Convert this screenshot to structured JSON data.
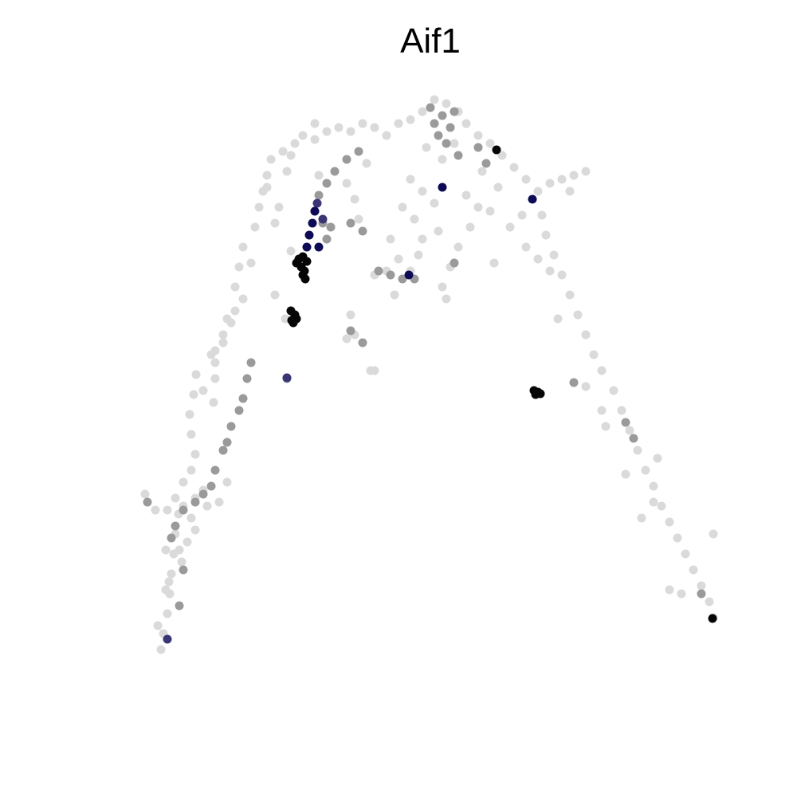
{
  "chart_data": {
    "type": "scatter",
    "title": "Aif1",
    "xlabel": "",
    "ylabel": "",
    "axes_visible": false,
    "grid": false,
    "legend": "none",
    "xlim": [
      0,
      100
    ],
    "ylim": [
      0,
      100
    ],
    "colors": {
      "low": "#dadada",
      "mid": "#9a9a9a",
      "high_navy": "#0d0b55",
      "high_black": "#050505",
      "purple": "#3a3575"
    },
    "series": [
      {
        "values": [
          [
            20.2,
            18.5
          ],
          [
            20.5,
            20.5
          ],
          [
            21.0,
            23.0
          ],
          [
            21.3,
            25.5
          ],
          [
            21.5,
            28.0
          ],
          [
            21.8,
            30.5
          ],
          [
            22.0,
            33.0
          ],
          [
            22.4,
            35.5
          ],
          [
            22.0,
            37.5
          ],
          [
            21.0,
            36.0
          ],
          [
            23.0,
            36.5
          ],
          [
            24.0,
            35.0
          ],
          [
            24.5,
            37.5
          ],
          [
            25.5,
            38.5
          ],
          [
            24.0,
            41.0
          ],
          [
            23.0,
            39.5
          ],
          [
            18.2,
            38.0
          ],
          [
            19.5,
            36.0
          ],
          [
            22.5,
            31.0
          ],
          [
            20.8,
            26.0
          ],
          [
            23.5,
            32.0
          ],
          [
            24.5,
            33.5
          ],
          [
            26.0,
            36.5
          ],
          [
            27.5,
            37.0
          ],
          [
            28.5,
            39.5
          ],
          [
            24.5,
            43.0
          ],
          [
            24.0,
            45.5
          ],
          [
            23.8,
            48.0
          ],
          [
            24.3,
            50.5
          ],
          [
            24.6,
            53.0
          ],
          [
            25.5,
            51.0
          ],
          [
            27.0,
            52.5
          ],
          [
            26.5,
            55.5
          ],
          [
            28.0,
            58.0
          ],
          [
            29.5,
            61.0
          ],
          [
            30.5,
            62.5
          ],
          [
            28.0,
            57.0
          ],
          [
            29.0,
            59.5
          ],
          [
            27.0,
            56.0
          ],
          [
            28.5,
            60.0
          ],
          [
            29.5,
            64.0
          ],
          [
            30.0,
            66.5
          ],
          [
            30.5,
            69.0
          ],
          [
            31.5,
            67.0
          ],
          [
            32.0,
            71.5
          ],
          [
            32.5,
            74.0
          ],
          [
            33.0,
            76.0
          ],
          [
            33.5,
            78.0
          ],
          [
            34.0,
            80.0
          ],
          [
            35.5,
            81.0
          ],
          [
            37.0,
            82.0
          ],
          [
            38.0,
            83.0
          ],
          [
            39.5,
            82.5
          ],
          [
            41.0,
            83.5
          ],
          [
            42.5,
            84.0
          ],
          [
            44.0,
            83.5
          ],
          [
            45.5,
            84.5
          ],
          [
            47.0,
            84.0
          ],
          [
            48.5,
            83.0
          ],
          [
            50.0,
            84.5
          ],
          [
            51.5,
            85.0
          ],
          [
            53.0,
            86.0
          ],
          [
            54.5,
            87.5
          ],
          [
            56.0,
            87.0
          ],
          [
            57.5,
            86.0
          ],
          [
            58.5,
            84.5
          ],
          [
            60.0,
            83.0
          ],
          [
            61.5,
            82.0
          ],
          [
            63.0,
            80.5
          ],
          [
            64.5,
            79.0
          ],
          [
            66.0,
            77.5
          ],
          [
            67.5,
            76.0
          ],
          [
            69.0,
            77.0
          ],
          [
            70.5,
            77.5
          ],
          [
            72.0,
            78.0
          ],
          [
            73.5,
            78.5
          ],
          [
            71.5,
            76.0
          ],
          [
            68.0,
            73.0
          ],
          [
            68.5,
            70.5
          ],
          [
            69.5,
            68.0
          ],
          [
            70.5,
            65.5
          ],
          [
            71.5,
            63.0
          ],
          [
            72.5,
            60.5
          ],
          [
            73.5,
            58.0
          ],
          [
            74.5,
            55.5
          ],
          [
            75.5,
            53.5
          ],
          [
            77.0,
            51.0
          ],
          [
            78.0,
            48.5
          ],
          [
            79.0,
            46.0
          ],
          [
            80.0,
            43.5
          ],
          [
            81.0,
            41.0
          ],
          [
            82.0,
            39.0
          ],
          [
            83.0,
            36.5
          ],
          [
            84.0,
            34.5
          ],
          [
            85.0,
            32.5
          ],
          [
            86.0,
            30.5
          ],
          [
            87.0,
            28.5
          ],
          [
            88.0,
            26.5
          ],
          [
            89.0,
            24.5
          ],
          [
            89.5,
            22.5
          ],
          [
            84.0,
            26.0
          ],
          [
            89.5,
            33.0
          ],
          [
            75.5,
            48.5
          ],
          [
            72.0,
            52.0
          ],
          [
            73.5,
            51.5
          ],
          [
            51.5,
            77.5
          ],
          [
            53.0,
            76.0
          ],
          [
            54.5,
            74.5
          ],
          [
            55.0,
            71.0
          ],
          [
            53.0,
            70.0
          ],
          [
            52.5,
            68.0
          ],
          [
            51.5,
            66.0
          ],
          [
            50.0,
            67.5
          ],
          [
            48.5,
            66.0
          ],
          [
            47.0,
            65.5
          ],
          [
            55.5,
            64.0
          ],
          [
            56.0,
            62.5
          ],
          [
            56.5,
            66.5
          ],
          [
            57.5,
            69.0
          ],
          [
            59.0,
            71.5
          ],
          [
            60.0,
            74.0
          ],
          [
            58.5,
            75.5
          ],
          [
            61.5,
            73.5
          ],
          [
            62.0,
            67.0
          ],
          [
            44.0,
            60.5
          ],
          [
            44.5,
            58.0
          ],
          [
            43.5,
            57.5
          ],
          [
            46.5,
            53.5
          ],
          [
            40.0,
            78.0
          ],
          [
            43.5,
            77.0
          ],
          [
            44.5,
            75.0
          ],
          [
            45.0,
            72.5
          ],
          [
            36.0,
            78.5
          ],
          [
            33.5,
            76.5
          ],
          [
            35.0,
            74.0
          ],
          [
            34.5,
            72.0
          ],
          [
            46.0,
            79.5
          ],
          [
            39.5,
            84.5
          ],
          [
            36.5,
            80.5
          ],
          [
            65.5,
            73.0
          ],
          [
            64.0,
            71.5
          ],
          [
            66.0,
            69.0
          ],
          [
            67.5,
            67.5
          ],
          [
            69.0,
            66.0
          ],
          [
            27.0,
            54.5
          ],
          [
            26.8,
            49.5
          ],
          [
            36.5,
            68.5
          ],
          [
            35.8,
            60.0
          ],
          [
            34.5,
            63.0
          ],
          [
            47.0,
            53.5
          ],
          [
            49.5,
            63.0
          ],
          [
            57.0,
            82.0
          ],
          [
            55.5,
            80.0
          ],
          [
            53.5,
            81.5
          ],
          [
            60.5,
            78.5
          ],
          [
            62.5,
            76.5
          ],
          [
            50.5,
            74.0
          ],
          [
            49.0,
            70.0
          ],
          [
            52.0,
            72.5
          ],
          [
            70.0,
            60.0
          ],
          [
            78.5,
            40.5
          ],
          [
            82.5,
            42.5
          ],
          [
            85.5,
            25.5
          ],
          [
            82.0,
            37.0
          ],
          [
            80.5,
            35.0
          ],
          [
            76.0,
            46.5
          ],
          [
            20.8,
            31.0
          ],
          [
            22.8,
            29.5
          ],
          [
            19.8,
            21.5
          ],
          [
            21.2,
            27.0
          ]
        ],
        "expression": "low"
      },
      {
        "values": [
          [
            42.0,
            78.5
          ],
          [
            43.5,
            80.0
          ],
          [
            41.0,
            77.0
          ],
          [
            40.0,
            75.5
          ],
          [
            39.5,
            73.5
          ],
          [
            40.5,
            72.0
          ],
          [
            41.5,
            71.5
          ],
          [
            44.0,
            72.0
          ],
          [
            45.5,
            71.0
          ],
          [
            45.0,
            81.0
          ],
          [
            54.0,
            86.5
          ],
          [
            55.5,
            85.5
          ],
          [
            56.5,
            84.0
          ],
          [
            57.0,
            86.0
          ],
          [
            54.5,
            84.5
          ],
          [
            55.0,
            83.0
          ],
          [
            56.0,
            82.0
          ],
          [
            60.0,
            81.5
          ],
          [
            61.0,
            79.5
          ],
          [
            57.5,
            80.5
          ],
          [
            31.5,
            54.5
          ],
          [
            31.0,
            52.5
          ],
          [
            30.5,
            50.0
          ],
          [
            30.0,
            48.5
          ],
          [
            29.0,
            46.5
          ],
          [
            28.5,
            44.5
          ],
          [
            28.0,
            43.5
          ],
          [
            27.0,
            41.0
          ],
          [
            26.5,
            39.0
          ],
          [
            25.5,
            38.0
          ],
          [
            24.5,
            37.0
          ],
          [
            23.0,
            36.0
          ],
          [
            22.0,
            34.0
          ],
          [
            21.5,
            32.5
          ],
          [
            23.0,
            28.5
          ],
          [
            22.5,
            24.0
          ],
          [
            18.5,
            37.0
          ],
          [
            47.5,
            66.0
          ],
          [
            49.0,
            65.5
          ],
          [
            50.5,
            65.0
          ],
          [
            52.0,
            65.0
          ],
          [
            57.0,
            67.0
          ],
          [
            45.5,
            57.0
          ],
          [
            72.0,
            52.0
          ],
          [
            78.5,
            47.0
          ],
          [
            79.5,
            45.0
          ],
          [
            88.0,
            25.5
          ],
          [
            44.0,
            58.5
          ],
          [
            36.0,
            52.5
          ],
          [
            41.0,
            70.0
          ]
        ],
        "expression": "mid"
      },
      {
        "values": [
          [
            39.5,
            73.5
          ],
          [
            39.2,
            72.0
          ],
          [
            38.8,
            70.5
          ],
          [
            38.5,
            69.0
          ],
          [
            40.0,
            69.0
          ],
          [
            55.5,
            76.5
          ],
          [
            66.8,
            75.0
          ],
          [
            51.3,
            65.5
          ]
        ],
        "expression": "high_navy"
      },
      {
        "values": [
          [
            37.5,
            67.5
          ],
          [
            38.0,
            67.8
          ],
          [
            38.5,
            67.2
          ],
          [
            37.8,
            66.5
          ],
          [
            38.2,
            66.0
          ],
          [
            38.0,
            65.5
          ],
          [
            38.3,
            65.0
          ],
          [
            37.2,
            67.0
          ],
          [
            36.5,
            61.0
          ],
          [
            37.0,
            60.5
          ],
          [
            36.8,
            59.5
          ],
          [
            37.2,
            60.0
          ],
          [
            36.6,
            59.8
          ],
          [
            67.0,
            51.0
          ],
          [
            67.5,
            50.8
          ],
          [
            67.2,
            50.5
          ],
          [
            67.8,
            50.6
          ],
          [
            62.3,
            81.2
          ],
          [
            89.4,
            22.4
          ]
        ],
        "expression": "high_black"
      },
      {
        "values": [
          [
            21.0,
            19.8
          ],
          [
            36.0,
            52.6
          ],
          [
            39.8,
            74.5
          ],
          [
            40.5,
            72.5
          ]
        ],
        "expression": "purple"
      }
    ]
  }
}
